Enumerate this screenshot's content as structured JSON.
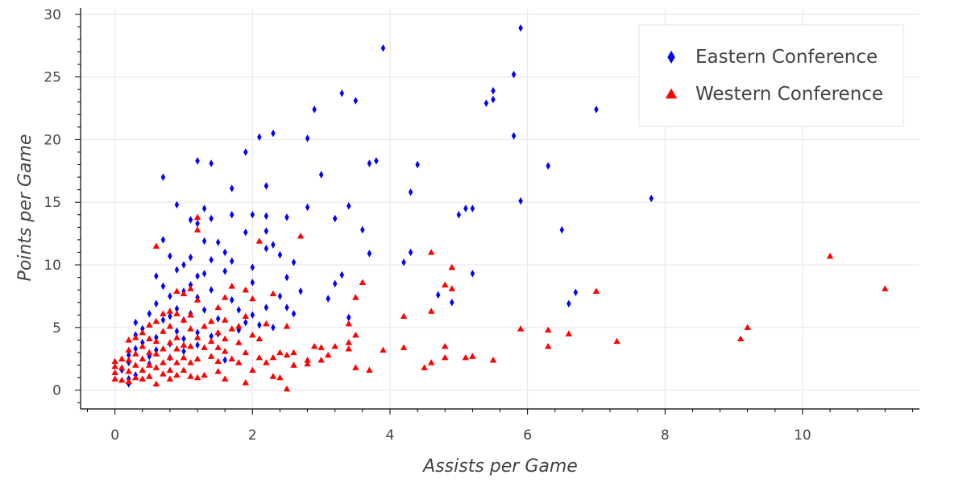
{
  "chart_data": {
    "type": "scatter",
    "xlabel": "Assists per Game",
    "ylabel": "Points per Game",
    "xlim": [
      -0.5,
      11.7
    ],
    "ylim": [
      -1.5,
      30.5
    ],
    "x_ticks": [
      0,
      2,
      4,
      6,
      8,
      10
    ],
    "y_ticks": [
      0,
      5,
      10,
      15,
      20,
      25,
      30
    ],
    "grid": true,
    "legend_position": "top-right",
    "series": [
      {
        "name": "Eastern Conference",
        "marker": "diamond",
        "color": "#0000ff",
        "points": [
          [
            3.9,
            27.3
          ],
          [
            5.9,
            28.9
          ],
          [
            5.8,
            25.2
          ],
          [
            5.5,
            23.9
          ],
          [
            5.5,
            23.2
          ],
          [
            5.4,
            22.9
          ],
          [
            3.3,
            23.7
          ],
          [
            3.5,
            23.1
          ],
          [
            2.9,
            22.4
          ],
          [
            7.0,
            22.4
          ],
          [
            2.3,
            20.5
          ],
          [
            2.1,
            20.2
          ],
          [
            5.8,
            20.3
          ],
          [
            2.8,
            20.1
          ],
          [
            1.9,
            19.0
          ],
          [
            3.7,
            18.1
          ],
          [
            3.8,
            18.3
          ],
          [
            4.4,
            18.0
          ],
          [
            1.2,
            18.3
          ],
          [
            1.4,
            18.1
          ],
          [
            6.3,
            17.9
          ],
          [
            3.0,
            17.2
          ],
          [
            0.7,
            17.0
          ],
          [
            2.2,
            16.3
          ],
          [
            1.7,
            16.1
          ],
          [
            4.3,
            15.8
          ],
          [
            7.8,
            15.3
          ],
          [
            5.9,
            15.1
          ],
          [
            0.9,
            14.8
          ],
          [
            2.8,
            14.6
          ],
          [
            3.4,
            14.7
          ],
          [
            5.1,
            14.5
          ],
          [
            5.2,
            14.5
          ],
          [
            1.3,
            14.5
          ],
          [
            5.0,
            14.0
          ],
          [
            1.7,
            14.0
          ],
          [
            2.0,
            14.0
          ],
          [
            2.2,
            13.9
          ],
          [
            1.1,
            13.6
          ],
          [
            1.4,
            13.7
          ],
          [
            2.5,
            13.8
          ],
          [
            3.2,
            13.7
          ],
          [
            1.2,
            13.3
          ],
          [
            2.2,
            12.7
          ],
          [
            1.9,
            12.6
          ],
          [
            3.6,
            12.8
          ],
          [
            6.5,
            12.8
          ],
          [
            0.7,
            12.0
          ],
          [
            1.3,
            11.9
          ],
          [
            1.5,
            11.8
          ],
          [
            2.3,
            11.6
          ],
          [
            2.2,
            11.3
          ],
          [
            1.6,
            11.0
          ],
          [
            2.4,
            10.8
          ],
          [
            3.7,
            10.9
          ],
          [
            4.3,
            11.0
          ],
          [
            0.8,
            10.7
          ],
          [
            1.1,
            10.6
          ],
          [
            1.4,
            10.4
          ],
          [
            1.7,
            10.3
          ],
          [
            4.2,
            10.2
          ],
          [
            2.6,
            10.2
          ],
          [
            1.0,
            10.0
          ],
          [
            0.9,
            9.6
          ],
          [
            1.3,
            9.3
          ],
          [
            1.6,
            9.5
          ],
          [
            2.0,
            9.8
          ],
          [
            5.2,
            9.3
          ],
          [
            0.6,
            9.1
          ],
          [
            1.2,
            9.1
          ],
          [
            2.5,
            9.0
          ],
          [
            3.3,
            9.2
          ],
          [
            2.0,
            8.6
          ],
          [
            1.1,
            8.4
          ],
          [
            0.7,
            8.3
          ],
          [
            3.2,
            8.5
          ],
          [
            1.4,
            8.0
          ],
          [
            1.0,
            7.9
          ],
          [
            2.7,
            7.9
          ],
          [
            6.7,
            7.8
          ],
          [
            0.8,
            7.5
          ],
          [
            1.2,
            7.4
          ],
          [
            1.7,
            7.2
          ],
          [
            2.4,
            7.5
          ],
          [
            3.1,
            7.3
          ],
          [
            4.7,
            7.6
          ],
          [
            4.9,
            7.0
          ],
          [
            0.6,
            6.9
          ],
          [
            6.6,
            6.9
          ],
          [
            0.9,
            6.5
          ],
          [
            1.3,
            6.4
          ],
          [
            1.8,
            6.4
          ],
          [
            2.2,
            6.6
          ],
          [
            2.5,
            6.6
          ],
          [
            0.5,
            6.1
          ],
          [
            1.1,
            6.1
          ],
          [
            2.0,
            6.0
          ],
          [
            2.6,
            6.1
          ],
          [
            0.8,
            5.9
          ],
          [
            1.5,
            5.7
          ],
          [
            3.4,
            5.8
          ],
          [
            0.3,
            5.4
          ],
          [
            0.7,
            5.6
          ],
          [
            1.0,
            5.6
          ],
          [
            1.9,
            5.4
          ],
          [
            2.1,
            5.2
          ],
          [
            2.3,
            5.0
          ],
          [
            0.4,
            4.9
          ],
          [
            0.9,
            4.7
          ],
          [
            1.2,
            4.6
          ],
          [
            1.5,
            4.5
          ],
          [
            1.8,
            4.8
          ],
          [
            0.3,
            4.4
          ],
          [
            0.6,
            4.2
          ],
          [
            1.0,
            4.1
          ],
          [
            1.4,
            4.3
          ],
          [
            0.4,
            3.8
          ],
          [
            0.8,
            3.7
          ],
          [
            1.2,
            3.6
          ],
          [
            0.3,
            3.3
          ],
          [
            0.6,
            3.2
          ],
          [
            1.0,
            3.1
          ],
          [
            0.2,
            2.8
          ],
          [
            0.5,
            2.7
          ],
          [
            0.8,
            2.6
          ],
          [
            1.6,
            2.4
          ],
          [
            0.2,
            2.2
          ],
          [
            0.5,
            2.1
          ],
          [
            0.1,
            1.6
          ],
          [
            0.3,
            1.2
          ],
          [
            0.2,
            0.9
          ],
          [
            0.2,
            0.5
          ]
        ]
      },
      {
        "name": "Western Conference",
        "marker": "triangle",
        "color": "#ff0000",
        "points": [
          [
            11.2,
            8.1
          ],
          [
            10.4,
            10.7
          ],
          [
            9.2,
            5.0
          ],
          [
            9.1,
            4.1
          ],
          [
            7.3,
            3.9
          ],
          [
            7.0,
            7.9
          ],
          [
            6.6,
            4.5
          ],
          [
            6.3,
            4.8
          ],
          [
            6.3,
            3.5
          ],
          [
            5.9,
            4.9
          ],
          [
            5.5,
            2.4
          ],
          [
            5.2,
            2.7
          ],
          [
            5.1,
            2.6
          ],
          [
            4.9,
            9.8
          ],
          [
            4.9,
            8.1
          ],
          [
            4.8,
            8.4
          ],
          [
            4.8,
            3.5
          ],
          [
            4.8,
            2.6
          ],
          [
            4.6,
            11.0
          ],
          [
            4.6,
            6.3
          ],
          [
            4.6,
            2.2
          ],
          [
            4.5,
            1.8
          ],
          [
            4.2,
            5.9
          ],
          [
            4.2,
            3.4
          ],
          [
            3.9,
            3.2
          ],
          [
            3.7,
            1.6
          ],
          [
            3.6,
            8.6
          ],
          [
            3.5,
            7.4
          ],
          [
            3.5,
            4.4
          ],
          [
            3.5,
            1.8
          ],
          [
            3.4,
            5.3
          ],
          [
            3.4,
            3.8
          ],
          [
            3.4,
            3.3
          ],
          [
            3.2,
            3.5
          ],
          [
            3.1,
            2.8
          ],
          [
            3.0,
            3.4
          ],
          [
            3.0,
            2.4
          ],
          [
            2.9,
            3.5
          ],
          [
            2.8,
            2.4
          ],
          [
            2.8,
            2.1
          ],
          [
            2.7,
            12.3
          ],
          [
            2.6,
            3.0
          ],
          [
            2.6,
            2.0
          ],
          [
            2.5,
            5.1
          ],
          [
            2.5,
            2.8
          ],
          [
            2.5,
            0.1
          ],
          [
            2.4,
            3.0
          ],
          [
            2.4,
            1.0
          ],
          [
            2.3,
            7.7
          ],
          [
            2.3,
            2.6
          ],
          [
            2.3,
            1.1
          ],
          [
            2.2,
            5.3
          ],
          [
            2.2,
            2.2
          ],
          [
            2.1,
            11.9
          ],
          [
            2.1,
            4.1
          ],
          [
            2.1,
            2.6
          ],
          [
            2.0,
            7.3
          ],
          [
            2.0,
            4.4
          ],
          [
            2.0,
            1.6
          ],
          [
            1.9,
            8.0
          ],
          [
            1.9,
            5.9
          ],
          [
            1.9,
            3.0
          ],
          [
            1.9,
            0.6
          ],
          [
            1.8,
            5.1
          ],
          [
            1.8,
            3.8
          ],
          [
            1.8,
            2.2
          ],
          [
            1.7,
            8.3
          ],
          [
            1.7,
            4.9
          ],
          [
            1.7,
            2.5
          ],
          [
            1.6,
            7.4
          ],
          [
            1.6,
            5.6
          ],
          [
            1.6,
            4.1
          ],
          [
            1.6,
            3.1
          ],
          [
            1.6,
            0.9
          ],
          [
            1.5,
            6.6
          ],
          [
            1.5,
            4.6
          ],
          [
            1.5,
            3.4
          ],
          [
            1.5,
            2.3
          ],
          [
            1.5,
            1.5
          ],
          [
            1.4,
            5.5
          ],
          [
            1.4,
            3.9
          ],
          [
            1.4,
            2.7
          ],
          [
            1.3,
            5.1
          ],
          [
            1.3,
            3.4
          ],
          [
            1.3,
            1.2
          ],
          [
            1.2,
            13.8
          ],
          [
            1.2,
            12.8
          ],
          [
            1.2,
            7.2
          ],
          [
            1.2,
            4.2
          ],
          [
            1.2,
            2.5
          ],
          [
            1.2,
            1.0
          ],
          [
            1.1,
            8.1
          ],
          [
            1.1,
            6.0
          ],
          [
            1.1,
            4.9
          ],
          [
            1.1,
            3.5
          ],
          [
            1.1,
            2.2
          ],
          [
            1.1,
            1.1
          ],
          [
            1.0,
            7.7
          ],
          [
            1.0,
            5.6
          ],
          [
            1.0,
            3.6
          ],
          [
            1.0,
            2.6
          ],
          [
            1.0,
            1.6
          ],
          [
            0.9,
            7.9
          ],
          [
            0.9,
            6.1
          ],
          [
            0.9,
            4.2
          ],
          [
            0.9,
            3.3
          ],
          [
            0.9,
            2.2
          ],
          [
            0.9,
            1.2
          ],
          [
            0.8,
            6.3
          ],
          [
            0.8,
            5.1
          ],
          [
            0.8,
            3.8
          ],
          [
            0.8,
            2.6
          ],
          [
            0.8,
            1.6
          ],
          [
            0.8,
            0.9
          ],
          [
            0.7,
            6.1
          ],
          [
            0.7,
            4.7
          ],
          [
            0.7,
            3.3
          ],
          [
            0.7,
            2.2
          ],
          [
            0.7,
            1.3
          ],
          [
            0.6,
            11.5
          ],
          [
            0.6,
            5.5
          ],
          [
            0.6,
            3.9
          ],
          [
            0.6,
            2.9
          ],
          [
            0.6,
            1.8
          ],
          [
            0.6,
            0.5
          ],
          [
            0.5,
            5.2
          ],
          [
            0.5,
            4.1
          ],
          [
            0.5,
            3.0
          ],
          [
            0.5,
            2.0
          ],
          [
            0.5,
            1.1
          ],
          [
            0.4,
            4.6
          ],
          [
            0.4,
            3.5
          ],
          [
            0.4,
            2.5
          ],
          [
            0.4,
            1.6
          ],
          [
            0.4,
            0.9
          ],
          [
            0.3,
            4.2
          ],
          [
            0.3,
            2.9
          ],
          [
            0.3,
            2.0
          ],
          [
            0.3,
            1.0
          ],
          [
            0.2,
            4.0
          ],
          [
            0.2,
            3.2
          ],
          [
            0.2,
            2.4
          ],
          [
            0.2,
            1.5
          ],
          [
            0.2,
            0.7
          ],
          [
            0.1,
            2.5
          ],
          [
            0.1,
            1.8
          ],
          [
            0.1,
            0.8
          ],
          [
            0.0,
            2.3
          ],
          [
            0.0,
            1.9
          ],
          [
            0.0,
            1.4
          ],
          [
            0.0,
            0.9
          ]
        ]
      }
    ]
  }
}
